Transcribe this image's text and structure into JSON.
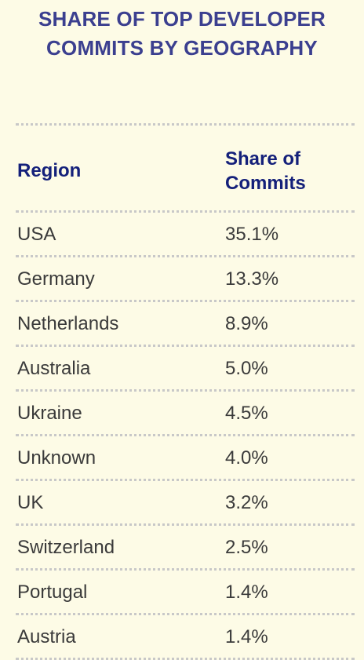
{
  "title": {
    "line1": "SHARE OF TOP DEVELOPER",
    "line2": "COMMITS BY GEOGRAPHY"
  },
  "columns": {
    "region": "Region",
    "share_line1": "Share of",
    "share_line2": "Commits"
  },
  "colors": {
    "background": "#fdfbe6",
    "title": "#3b3f8f",
    "header": "#14207a",
    "text": "#3a3a3a",
    "divider": "#c8c8c8"
  },
  "chart_data": {
    "type": "table",
    "title": "SHARE OF TOP DEVELOPER COMMITS BY GEOGRAPHY",
    "columns": [
      "Region",
      "Share of Commits"
    ],
    "rows": [
      {
        "region": "USA",
        "share": "35.1%"
      },
      {
        "region": "Germany",
        "share": "13.3%"
      },
      {
        "region": "Netherlands",
        "share": "8.9%"
      },
      {
        "region": "Australia",
        "share": "5.0%"
      },
      {
        "region": "Ukraine",
        "share": "4.5%"
      },
      {
        "region": "Unknown",
        "share": "4.0%"
      },
      {
        "region": "UK",
        "share": "3.2%"
      },
      {
        "region": "Switzerland",
        "share": "2.5%"
      },
      {
        "region": "Portugal",
        "share": "1.4%"
      },
      {
        "region": "Austria",
        "share": "1.4%"
      }
    ]
  }
}
